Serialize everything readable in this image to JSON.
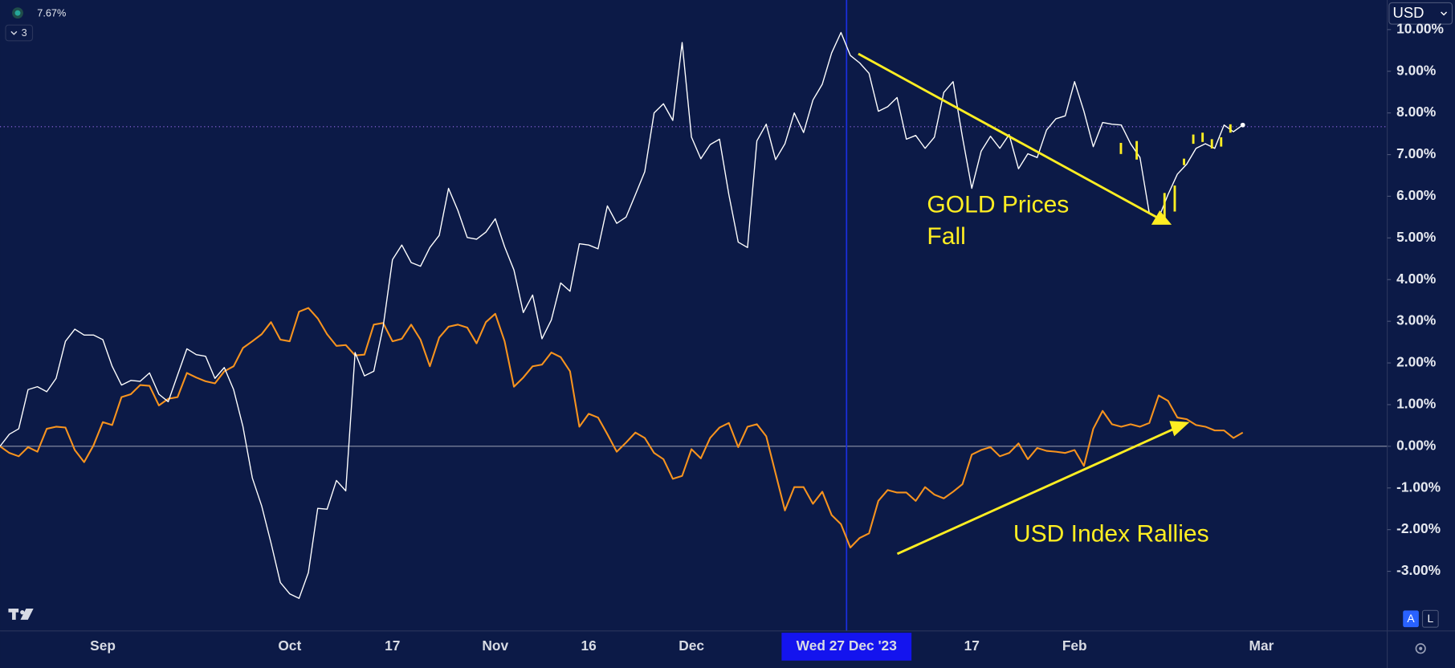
{
  "chart_data": {
    "type": "line",
    "price_line": {
      "value": 7.67,
      "label": "7.67%"
    },
    "indicator_count": 3,
    "currency": "USD",
    "scale_buttons": [
      "A",
      "L"
    ],
    "annotations": [
      {
        "lines": [
          "GOLD Prices",
          "Fall"
        ]
      },
      {
        "lines": [
          "USD Index Rallies"
        ]
      }
    ],
    "categories": [
      null,
      null,
      null,
      null,
      null,
      null,
      null,
      null,
      null,
      null,
      null,
      "Sep",
      null,
      null,
      null,
      null,
      null,
      null,
      null,
      null,
      null,
      null,
      null,
      null,
      null,
      null,
      null,
      null,
      null,
      null,
      null,
      "Oct",
      null,
      null,
      null,
      null,
      null,
      null,
      null,
      null,
      null,
      null,
      "17",
      null,
      null,
      null,
      null,
      null,
      null,
      null,
      null,
      null,
      null,
      "Nov",
      null,
      null,
      null,
      null,
      null,
      null,
      null,
      null,
      null,
      "16",
      null,
      null,
      null,
      null,
      null,
      null,
      null,
      null,
      null,
      null,
      "Dec",
      null,
      null,
      null,
      null,
      null,
      null,
      null,
      null,
      null,
      null,
      null,
      null,
      null,
      null,
      null,
      "Wed 27 Dec '23",
      null,
      null,
      null,
      null,
      null,
      null,
      null,
      null,
      null,
      null,
      null,
      null,
      null,
      "17",
      null,
      null,
      null,
      null,
      null,
      null,
      null,
      null,
      null,
      null,
      "Feb",
      null,
      null,
      null,
      null,
      null,
      null,
      null,
      null,
      null,
      null,
      null,
      null,
      null,
      null,
      null,
      null,
      null,
      null,
      null,
      "Mar",
      null
    ],
    "series": [
      {
        "color": "#ffffff",
        "values": [
          0,
          0.29,
          0.42,
          1.36,
          1.43,
          1.31,
          1.63,
          2.52,
          2.81,
          2.67,
          2.67,
          2.56,
          1.92,
          1.47,
          1.58,
          1.56,
          1.76,
          1.25,
          1.07,
          1.71,
          2.34,
          2.2,
          2.16,
          1.63,
          1.89,
          1.36,
          0.47,
          -0.76,
          -1.43,
          -2.32,
          -3.27,
          -3.54,
          -3.65,
          -3.03,
          -1.49,
          -1.51,
          -0.82,
          -1.07,
          2.25,
          1.69,
          1.8,
          2.87,
          4.48,
          4.83,
          4.41,
          4.32,
          4.77,
          5.06,
          6.19,
          5.66,
          5.01,
          4.97,
          5.14,
          5.46,
          4.79,
          4.23,
          3.21,
          3.63,
          2.58,
          3.03,
          3.92,
          3.72,
          4.86,
          4.83,
          4.74,
          5.77,
          5.35,
          5.5,
          6.04,
          6.59,
          8.0,
          8.22,
          7.82,
          9.69,
          7.42,
          6.9,
          7.24,
          7.37,
          6.04,
          4.9,
          4.77,
          7.33,
          7.73,
          6.88,
          7.26,
          8.0,
          7.53,
          8.31,
          8.69,
          9.44,
          9.93,
          9.38,
          9.2,
          8.95,
          8.04,
          8.15,
          8.37,
          7.37,
          7.46,
          7.15,
          7.42,
          8.49,
          8.75,
          7.42,
          6.19,
          7.08,
          7.44,
          7.15,
          7.48,
          6.66,
          7.02,
          6.93,
          7.59,
          7.86,
          7.93,
          8.75,
          8.04,
          7.19,
          7.77,
          7.73,
          7.71,
          7.26,
          6.93,
          5.59,
          5.48,
          6.04,
          6.53,
          6.77,
          7.15,
          7.26,
          7.15,
          7.71,
          7.55,
          7.71,
          null,
          null,
          null
        ]
      },
      {
        "color": "#f7931e",
        "values": [
          0,
          -0.16,
          -0.24,
          -0.02,
          -0.13,
          0.42,
          0.47,
          0.45,
          -0.09,
          -0.38,
          0.02,
          0.58,
          0.51,
          1.18,
          1.25,
          1.47,
          1.45,
          0.98,
          1.14,
          1.18,
          1.76,
          1.65,
          1.56,
          1.51,
          1.8,
          1.92,
          2.36,
          2.52,
          2.69,
          2.98,
          2.56,
          2.52,
          3.23,
          3.32,
          3.07,
          2.69,
          2.41,
          2.43,
          2.18,
          2.2,
          2.92,
          2.96,
          2.52,
          2.58,
          2.92,
          2.56,
          1.92,
          2.61,
          2.87,
          2.92,
          2.85,
          2.47,
          2.98,
          3.18,
          2.52,
          1.43,
          1.65,
          1.92,
          1.96,
          2.25,
          2.14,
          1.8,
          0.47,
          0.78,
          0.69,
          0.29,
          -0.13,
          0.09,
          0.33,
          0.2,
          -0.16,
          -0.31,
          -0.78,
          -0.71,
          -0.07,
          -0.29,
          0.2,
          0.45,
          0.56,
          -0.02,
          0.47,
          0.53,
          0.24,
          -0.65,
          -1.54,
          -0.98,
          -0.98,
          -1.38,
          -1.09,
          -1.65,
          -1.87,
          -2.43,
          -2.2,
          -2.09,
          -1.31,
          -1.05,
          -1.11,
          -1.11,
          -1.31,
          -0.98,
          -1.16,
          -1.25,
          -1.09,
          -0.91,
          -0.2,
          -0.09,
          -0.02,
          -0.24,
          -0.16,
          0.07,
          -0.31,
          -0.04,
          -0.11,
          -0.13,
          -0.16,
          -0.09,
          -0.47,
          0.42,
          0.85,
          0.53,
          0.47,
          0.53,
          0.47,
          0.56,
          1.22,
          1.09,
          0.69,
          0.65,
          0.51,
          0.47,
          0.38,
          0.38,
          0.2,
          0.33,
          null,
          null,
          null
        ]
      }
    ],
    "ylim": [
      -4.43,
      10.71
    ],
    "yticks": [
      {
        "value": -3,
        "label": "-3.00%"
      },
      {
        "value": -2,
        "label": "-2.00%"
      },
      {
        "value": -1,
        "label": "-1.00%"
      },
      {
        "value": 0,
        "label": "0.00%"
      },
      {
        "value": 1,
        "label": "1.00%"
      },
      {
        "value": 2,
        "label": "2.00%"
      },
      {
        "value": 3,
        "label": "3.00%"
      },
      {
        "value": 4,
        "label": "4.00%"
      },
      {
        "value": 5,
        "label": "5.00%"
      },
      {
        "value": 6,
        "label": "6.00%"
      },
      {
        "value": 7,
        "label": "7.00%"
      },
      {
        "value": 8,
        "label": "8.00%"
      },
      {
        "value": 9,
        "label": "9.00%"
      },
      {
        "value": 10,
        "label": "10.00%"
      }
    ],
    "grid": false
  }
}
